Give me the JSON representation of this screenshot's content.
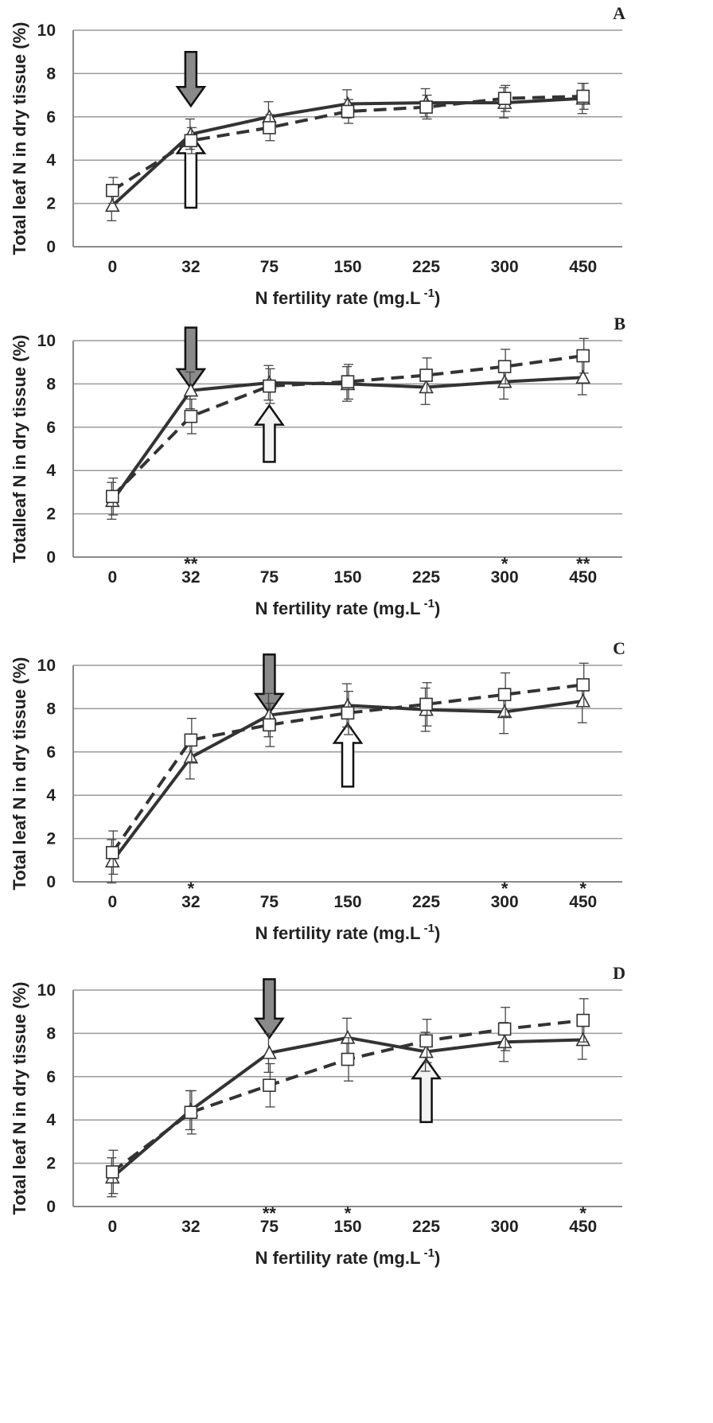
{
  "chart_data": [
    {
      "type": "line",
      "panel": "A",
      "categories": [
        "0",
        "32",
        "75",
        "150",
        "225",
        "300",
        "450"
      ],
      "ylim": [
        0,
        10
      ],
      "yticks": [
        0,
        2,
        4,
        6,
        8,
        10
      ],
      "xlabel": "N fertility rate (mg.L",
      "xlabel_sup": "-1",
      "xlabel_end": ")",
      "ylabel": "Total leaf N in dry tissue (%)",
      "grid": "horizontal",
      "series": [
        {
          "marker": "triangle",
          "line": "solid",
          "values": [
            1.9,
            5.2,
            6.0,
            6.6,
            6.65,
            6.65,
            6.85
          ],
          "errors": [
            0.7,
            0.7,
            0.7,
            0.65,
            0.65,
            0.7,
            0.7
          ]
        },
        {
          "marker": "square",
          "line": "dashed",
          "values": [
            2.6,
            4.9,
            5.5,
            6.25,
            6.45,
            6.85,
            6.95
          ],
          "errors": [
            0.6,
            0.6,
            0.6,
            0.55,
            0.55,
            0.6,
            0.6
          ]
        }
      ],
      "arrows": [
        {
          "fill": "#8a8a8a",
          "direction": "down",
          "x": "32",
          "y_top": 9.0,
          "y_tip": 6.5
        },
        {
          "fill": "#ffffff",
          "direction": "up",
          "x": "32",
          "y_tip": 5.2,
          "y_bottom": 1.8
        }
      ],
      "significance": []
    },
    {
      "type": "line",
      "panel": "B",
      "categories": [
        "0",
        "32",
        "75",
        "150",
        "225",
        "300",
        "450"
      ],
      "ylim": [
        0,
        10
      ],
      "yticks": [
        0,
        2,
        4,
        6,
        8,
        10
      ],
      "xlabel": "N fertility rate (mg.L",
      "xlabel_sup": "-1",
      "xlabel_end": ")",
      "ylabel": "Totalleaf N in dry tissue (%)",
      "grid": "horizontal",
      "series": [
        {
          "marker": "triangle",
          "line": "solid",
          "values": [
            2.6,
            7.7,
            8.05,
            8.0,
            7.85,
            8.1,
            8.3
          ],
          "errors": [
            0.85,
            0.85,
            0.8,
            0.8,
            0.8,
            0.8,
            0.8
          ]
        },
        {
          "marker": "square",
          "line": "dashed",
          "values": [
            2.8,
            6.5,
            7.9,
            8.1,
            8.4,
            8.8,
            9.3
          ],
          "errors": [
            0.85,
            0.8,
            0.8,
            0.8,
            0.8,
            0.8,
            0.8
          ]
        }
      ],
      "arrows": [
        {
          "fill": "#8a8a8a",
          "direction": "down",
          "x": "32",
          "y_top": 10.6,
          "y_tip": 7.8
        },
        {
          "fill": "#f2f2f2",
          "direction": "up",
          "x": "75",
          "y_tip": 7.0,
          "y_bottom": 4.4
        }
      ],
      "significance": [
        {
          "x": "32",
          "mark": "**"
        },
        {
          "x": "300",
          "mark": "*"
        },
        {
          "x": "450",
          "mark": "**"
        }
      ]
    },
    {
      "type": "line",
      "panel": "C",
      "categories": [
        "0",
        "32",
        "75",
        "150",
        "225",
        "300",
        "450"
      ],
      "ylim": [
        0,
        10
      ],
      "yticks": [
        0,
        2,
        4,
        6,
        8,
        10
      ],
      "xlabel": "N fertility rate (mg.L",
      "xlabel_sup": "-1",
      "xlabel_end": ")",
      "ylabel": "Total leaf N in dry tissue (%)",
      "grid": "horizontal",
      "series": [
        {
          "marker": "triangle",
          "line": "solid",
          "values": [
            0.95,
            5.75,
            7.7,
            8.15,
            7.95,
            7.85,
            8.35
          ],
          "errors": [
            1.0,
            1.0,
            1.0,
            1.0,
            1.0,
            1.0,
            1.0
          ]
        },
        {
          "marker": "square",
          "line": "dashed",
          "values": [
            1.35,
            6.55,
            7.25,
            7.8,
            8.2,
            8.65,
            9.1
          ],
          "errors": [
            1.0,
            1.0,
            1.0,
            1.0,
            1.0,
            1.0,
            1.0
          ]
        }
      ],
      "arrows": [
        {
          "fill": "#8a8a8a",
          "direction": "down",
          "x": "75",
          "y_top": 10.5,
          "y_tip": 7.8
        },
        {
          "fill": "#ffffff",
          "direction": "up",
          "x": "150",
          "y_tip": 7.3,
          "y_bottom": 4.4
        }
      ],
      "significance": [
        {
          "x": "32",
          "mark": "*"
        },
        {
          "x": "300",
          "mark": "*"
        },
        {
          "x": "450",
          "mark": "*"
        }
      ]
    },
    {
      "type": "line",
      "panel": "D",
      "categories": [
        "0",
        "32",
        "75",
        "150",
        "225",
        "300",
        "450"
      ],
      "ylim": [
        0,
        10
      ],
      "yticks": [
        0,
        2,
        4,
        6,
        8,
        10
      ],
      "xlabel": "N fertility rate (mg.L",
      "xlabel_sup": "-1",
      "xlabel_end": ")",
      "ylabel": "Total leaf N in dry tissue (%)",
      "grid": "horizontal",
      "series": [
        {
          "marker": "triangle",
          "line": "solid",
          "values": [
            1.35,
            4.45,
            7.1,
            7.8,
            7.15,
            7.6,
            7.7
          ],
          "errors": [
            0.9,
            0.9,
            0.9,
            0.9,
            0.9,
            0.9,
            0.9
          ]
        },
        {
          "marker": "square",
          "line": "dashed",
          "values": [
            1.6,
            4.35,
            5.6,
            6.8,
            7.65,
            8.2,
            8.6
          ],
          "errors": [
            1.0,
            1.0,
            1.0,
            1.0,
            1.0,
            1.0,
            1.0
          ]
        }
      ],
      "arrows": [
        {
          "fill": "#8a8a8a",
          "direction": "down",
          "x": "75",
          "y_top": 10.5,
          "y_tip": 7.8
        },
        {
          "fill": "#f2f2f2",
          "direction": "up",
          "x": "225",
          "y_tip": 6.8,
          "y_bottom": 3.9
        }
      ],
      "significance": [
        {
          "x": "75",
          "mark": "**"
        },
        {
          "x": "150",
          "mark": "*"
        },
        {
          "x": "450",
          "mark": "*"
        }
      ]
    }
  ]
}
